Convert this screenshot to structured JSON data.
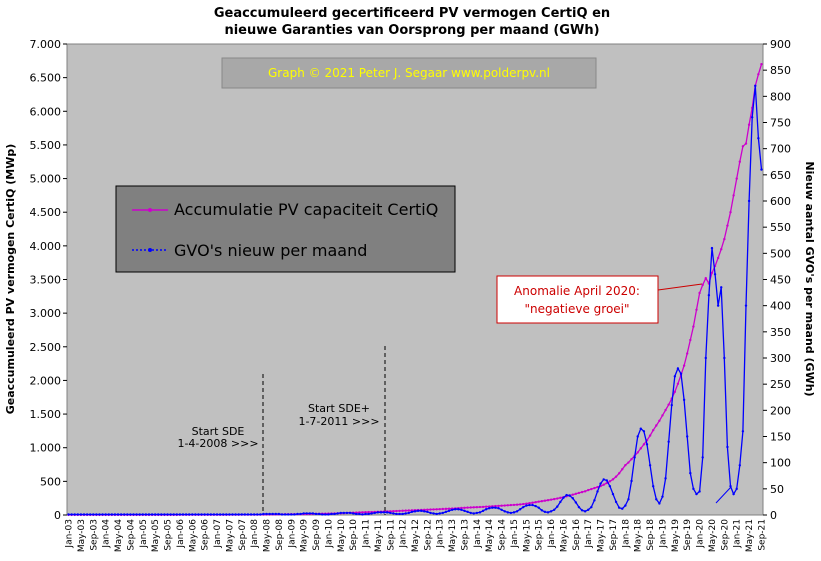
{
  "chart_data": {
    "type": "line",
    "title": [
      "Geaccumuleerd  gecertificeerd  PV vermogen CertiQ en",
      "nieuwe  Garanties  van Oorsprong  per maand (GWh)"
    ],
    "watermark": "Graph  ©  2021  Peter J. Segaar   www.polderpv.nl",
    "ylabel": "Geaccumuleerd PV vermogen CertiQ (MWp)",
    "y2label": "Nieuw aantal GVO's per maand (GWh)",
    "annotations": [
      [
        "Start SDE",
        "1-4-2008  >>>"
      ],
      [
        "Start SDE+",
        "1-7-2011  >>>"
      ],
      [
        "Anomalie  April 2020:",
        "\"negatieve groei\""
      ]
    ],
    "categories": [
      "Jan-03",
      null,
      null,
      null,
      "May-03",
      null,
      null,
      null,
      "Sep-03",
      null,
      null,
      null,
      "Jan-04",
      null,
      null,
      null,
      "May-04",
      null,
      null,
      null,
      "Sep-04",
      null,
      null,
      null,
      "Jan-05",
      null,
      null,
      null,
      "May-05",
      null,
      null,
      null,
      "Sep-05",
      null,
      null,
      null,
      "Jan-06",
      null,
      null,
      null,
      "May-06",
      null,
      null,
      null,
      "Sep-06",
      null,
      null,
      null,
      "Jan-07",
      null,
      null,
      null,
      "May-07",
      null,
      null,
      null,
      "Sep-07",
      null,
      null,
      null,
      "Jan-08",
      null,
      null,
      null,
      "May-08",
      null,
      null,
      null,
      "Sep-08",
      null,
      null,
      null,
      "Jan-09",
      null,
      null,
      null,
      "May-09",
      null,
      null,
      null,
      "Sep-09",
      null,
      null,
      null,
      "Jan-10",
      null,
      null,
      null,
      "May-10",
      null,
      null,
      null,
      "Sep-10",
      null,
      null,
      null,
      "Jan-11",
      null,
      null,
      null,
      "May-11",
      null,
      null,
      null,
      "Sep-11",
      null,
      null,
      null,
      "Jan-12",
      null,
      null,
      null,
      "May-12",
      null,
      null,
      null,
      "Sep-12",
      null,
      null,
      null,
      "Jan-13",
      null,
      null,
      null,
      "May-13",
      null,
      null,
      null,
      "Sep-13",
      null,
      null,
      null,
      "Jan-14",
      null,
      null,
      null,
      "May-14",
      null,
      null,
      null,
      "Sep-14",
      null,
      null,
      null,
      "Jan-15",
      null,
      null,
      null,
      "May-15",
      null,
      null,
      null,
      "Sep-15",
      null,
      null,
      null,
      "Jan-16",
      null,
      null,
      null,
      "May-16",
      null,
      null,
      null,
      "Sep-16",
      null,
      null,
      null,
      "Jan-17",
      null,
      null,
      null,
      "May-17",
      null,
      null,
      null,
      "Sep-17",
      null,
      null,
      null,
      "Jan-18",
      null,
      null,
      null,
      "May-18",
      null,
      null,
      null,
      "Sep-18",
      null,
      null,
      null,
      "Jan-19",
      null,
      null,
      null,
      "May-19",
      null,
      null,
      null,
      "Sep-19",
      null,
      null,
      null,
      "Jan-20",
      null,
      null,
      null,
      "May-20",
      null,
      null,
      null,
      "Sep-20",
      null,
      null,
      null,
      "Jan-21",
      null,
      null,
      null,
      "May-21",
      null,
      null,
      null,
      "Sep-21"
    ],
    "series": [
      {
        "name": "Accumulatie PV capaciteit CertiQ",
        "color": "#cc00cc",
        "values": [
          1,
          1,
          1,
          1,
          1,
          1,
          1,
          1,
          1,
          1,
          1,
          1,
          2,
          2,
          2,
          2,
          2,
          2,
          2,
          2,
          2,
          2,
          2,
          2,
          2,
          2,
          2,
          2,
          2,
          2,
          2,
          2,
          2,
          2,
          2,
          2,
          3,
          3,
          3,
          3,
          3,
          3,
          3,
          3,
          3,
          3,
          3,
          3,
          3,
          3,
          3,
          3,
          4,
          4,
          4,
          4,
          5,
          5,
          5,
          5,
          5,
          5,
          6,
          6,
          7,
          7,
          8,
          8,
          9,
          9,
          10,
          10,
          11,
          11,
          12,
          12,
          13,
          14,
          15,
          16,
          17,
          18,
          19,
          20,
          21,
          22,
          23,
          24,
          26,
          28,
          30,
          32,
          34,
          36,
          38,
          40,
          42,
          43,
          44,
          45,
          47,
          49,
          51,
          53,
          55,
          57,
          59,
          61,
          63,
          65,
          67,
          69,
          71,
          73,
          75,
          77,
          79,
          81,
          83,
          85,
          87,
          89,
          91,
          93,
          95,
          98,
          101,
          104,
          107,
          110,
          112,
          114,
          116,
          118,
          120,
          123,
          126,
          129,
          132,
          135,
          138,
          141,
          144,
          147,
          150,
          153,
          157,
          162,
          168,
          175,
          182,
          190,
          198,
          205,
          212,
          220,
          228,
          236,
          245,
          255,
          265,
          278,
          290,
          302,
          315,
          328,
          340,
          352,
          370,
          385,
          400,
          415,
          430,
          450,
          475,
          500,
          530,
          570,
          620,
          680,
          740,
          780,
          830,
          880,
          930,
          990,
          1050,
          1110,
          1180,
          1260,
          1330,
          1400,
          1480,
          1560,
          1640,
          1730,
          1830,
          1950,
          2080,
          2220,
          2400,
          2600,
          2800,
          3050,
          3300,
          3420,
          3520,
          3440,
          3600,
          3700,
          3820,
          3950,
          4100,
          4300,
          4500,
          4750,
          5000,
          5250,
          5480,
          5520,
          5800,
          6050,
          6380,
          6550,
          6700
        ]
      },
      {
        "name": "GVO's nieuw per maand",
        "color": "#0000ff",
        "axis": "y2",
        "values": [
          1,
          1,
          1,
          1,
          1,
          1,
          1,
          1,
          1,
          1,
          1,
          1,
          1,
          1,
          1,
          1,
          1,
          1,
          1,
          1,
          1,
          1,
          1,
          1,
          1,
          1,
          1,
          1,
          1,
          1,
          1,
          1,
          1,
          1,
          1,
          1,
          1,
          1,
          1,
          1,
          1,
          1,
          1,
          1,
          1,
          1,
          1,
          1,
          1,
          1,
          1,
          1,
          1,
          1,
          1,
          1,
          1,
          1,
          1,
          1,
          1,
          1,
          1,
          2,
          2,
          2,
          2,
          2,
          2,
          1,
          1,
          1,
          1,
          1,
          2,
          2,
          3,
          3,
          3,
          3,
          2,
          2,
          1,
          1,
          1,
          2,
          2,
          3,
          4,
          4,
          4,
          4,
          3,
          2,
          2,
          1,
          2,
          2,
          3,
          4,
          5,
          5,
          5,
          5,
          4,
          3,
          2,
          2,
          2,
          3,
          4,
          6,
          7,
          8,
          8,
          7,
          6,
          4,
          3,
          2,
          3,
          4,
          6,
          8,
          10,
          11,
          11,
          10,
          8,
          6,
          4,
          3,
          4,
          5,
          8,
          11,
          13,
          14,
          14,
          13,
          10,
          7,
          5,
          4,
          5,
          7,
          11,
          15,
          18,
          19,
          19,
          17,
          14,
          9,
          6,
          5,
          7,
          10,
          16,
          25,
          33,
          38,
          37,
          32,
          24,
          15,
          9,
          7,
          10,
          15,
          28,
          45,
          60,
          68,
          66,
          55,
          40,
          25,
          14,
          12,
          18,
          30,
          65,
          110,
          150,
          165,
          160,
          135,
          95,
          55,
          30,
          22,
          35,
          70,
          140,
          210,
          265,
          280,
          270,
          220,
          150,
          80,
          50,
          40,
          45,
          110,
          300,
          420,
          510,
          460,
          400,
          435,
          300,
          130,
          55,
          40,
          50,
          95,
          160,
          400,
          600,
          760,
          820,
          720,
          660
        ]
      }
    ],
    "ylim": [
      0,
      7000
    ],
    "yticks": [
      0,
      500,
      {
        "value": 1000,
        "label": "1.000"
      },
      {
        "value": 1500,
        "label": "1.500"
      },
      {
        "value": 2000,
        "label": "2.000"
      },
      {
        "value": 2500,
        "label": "2.500"
      },
      {
        "value": 3000,
        "label": "3.000"
      },
      {
        "value": 3500,
        "label": "3.500"
      },
      {
        "value": 4000,
        "label": "4.000"
      },
      {
        "value": 4500,
        "label": "4.500"
      },
      {
        "value": 5000,
        "label": "5.000"
      },
      {
        "value": 5500,
        "label": "5.500"
      },
      {
        "value": 6000,
        "label": "6.000"
      },
      {
        "value": 6500,
        "label": "6.500"
      },
      {
        "value": 7000,
        "label": "7.000"
      }
    ],
    "y2lim": [
      0,
      900
    ],
    "y2ticks": [
      0,
      50,
      100,
      150,
      200,
      250,
      300,
      350,
      400,
      450,
      500,
      550,
      600,
      650,
      700,
      750,
      800,
      850,
      900
    ]
  }
}
